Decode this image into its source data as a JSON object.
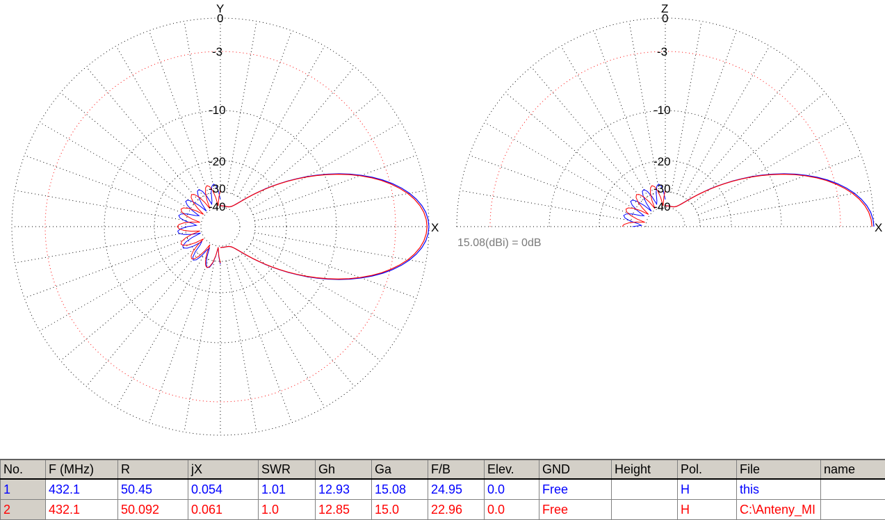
{
  "azimuth_plot": {
    "y_axis_label": "Y",
    "x_axis_label": "X",
    "ring_labels": [
      "0",
      "-3",
      "-10",
      "-20",
      "-30",
      "-40"
    ]
  },
  "elevation_plot": {
    "z_axis_label": "Z",
    "x_axis_label": "X",
    "ring_labels": [
      "0",
      "-3",
      "-10",
      "-20",
      "-30",
      "-40"
    ]
  },
  "reference_text": "15.08(dBi) = 0dB",
  "colors": {
    "series_1": "#0000ff",
    "series_2": "#ff0000",
    "grid": "#000000",
    "grid_minus3": "#ff0000"
  },
  "table": {
    "headers": [
      "No.",
      "F (MHz)",
      "R",
      "jX",
      "SWR",
      "Gh",
      "Ga",
      "F/B",
      "Elev.",
      "GND",
      "Height",
      "Pol.",
      "File",
      "name"
    ],
    "rows": [
      [
        "1",
        "432.1",
        "50.45",
        "0.054",
        "1.01",
        "12.93",
        "15.08",
        "24.95",
        "0.0",
        "Free",
        "",
        "H",
        "this",
        ""
      ],
      [
        "2",
        "432.1",
        "50.092",
        "0.061",
        "1.0",
        "12.85",
        "15.0",
        "22.96",
        "0.0",
        "Free",
        "",
        "H",
        "C:\\Anteny_MI",
        ""
      ]
    ]
  }
}
